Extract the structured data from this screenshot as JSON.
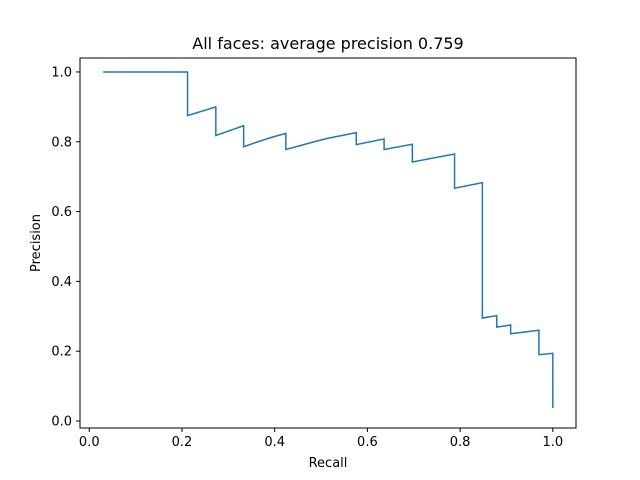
{
  "chart_data": {
    "type": "line",
    "title": "All faces: average precision 0.759",
    "xlabel": "Recall",
    "ylabel": "Precision",
    "xlim": [
      -0.02,
      1.05
    ],
    "ylim": [
      -0.02,
      1.04
    ],
    "xticks": [
      0.0,
      0.2,
      0.4,
      0.6,
      0.8,
      1.0
    ],
    "xtick_labels": [
      "0.0",
      "0.2",
      "0.4",
      "0.6",
      "0.8",
      "1.0"
    ],
    "yticks": [
      0.0,
      0.2,
      0.4,
      0.6,
      0.8,
      1.0
    ],
    "ytick_labels": [
      "0.0",
      "0.2",
      "0.4",
      "0.6",
      "0.8",
      "1.0"
    ],
    "grid": false,
    "line_color": "#1f77b4",
    "series": [
      {
        "name": "precision-recall",
        "points": [
          [
            0.03,
            1.0
          ],
          [
            0.212,
            1.0
          ],
          [
            0.212,
            0.875
          ],
          [
            0.273,
            0.9
          ],
          [
            0.273,
            0.818
          ],
          [
            0.333,
            0.846
          ],
          [
            0.333,
            0.786
          ],
          [
            0.364,
            0.8
          ],
          [
            0.394,
            0.813
          ],
          [
            0.424,
            0.824
          ],
          [
            0.424,
            0.778
          ],
          [
            0.455,
            0.789
          ],
          [
            0.485,
            0.8
          ],
          [
            0.515,
            0.81
          ],
          [
            0.545,
            0.818
          ],
          [
            0.576,
            0.826
          ],
          [
            0.576,
            0.792
          ],
          [
            0.636,
            0.808
          ],
          [
            0.636,
            0.778
          ],
          [
            0.697,
            0.793
          ],
          [
            0.697,
            0.742
          ],
          [
            0.788,
            0.765
          ],
          [
            0.788,
            0.667
          ],
          [
            0.848,
            0.683
          ],
          [
            0.848,
            0.295
          ],
          [
            0.879,
            0.302
          ],
          [
            0.879,
            0.269
          ],
          [
            0.909,
            0.275
          ],
          [
            0.909,
            0.25
          ],
          [
            0.97,
            0.26
          ],
          [
            0.97,
            0.19
          ],
          [
            1.0,
            0.194
          ],
          [
            1.0,
            0.037
          ]
        ]
      }
    ]
  }
}
